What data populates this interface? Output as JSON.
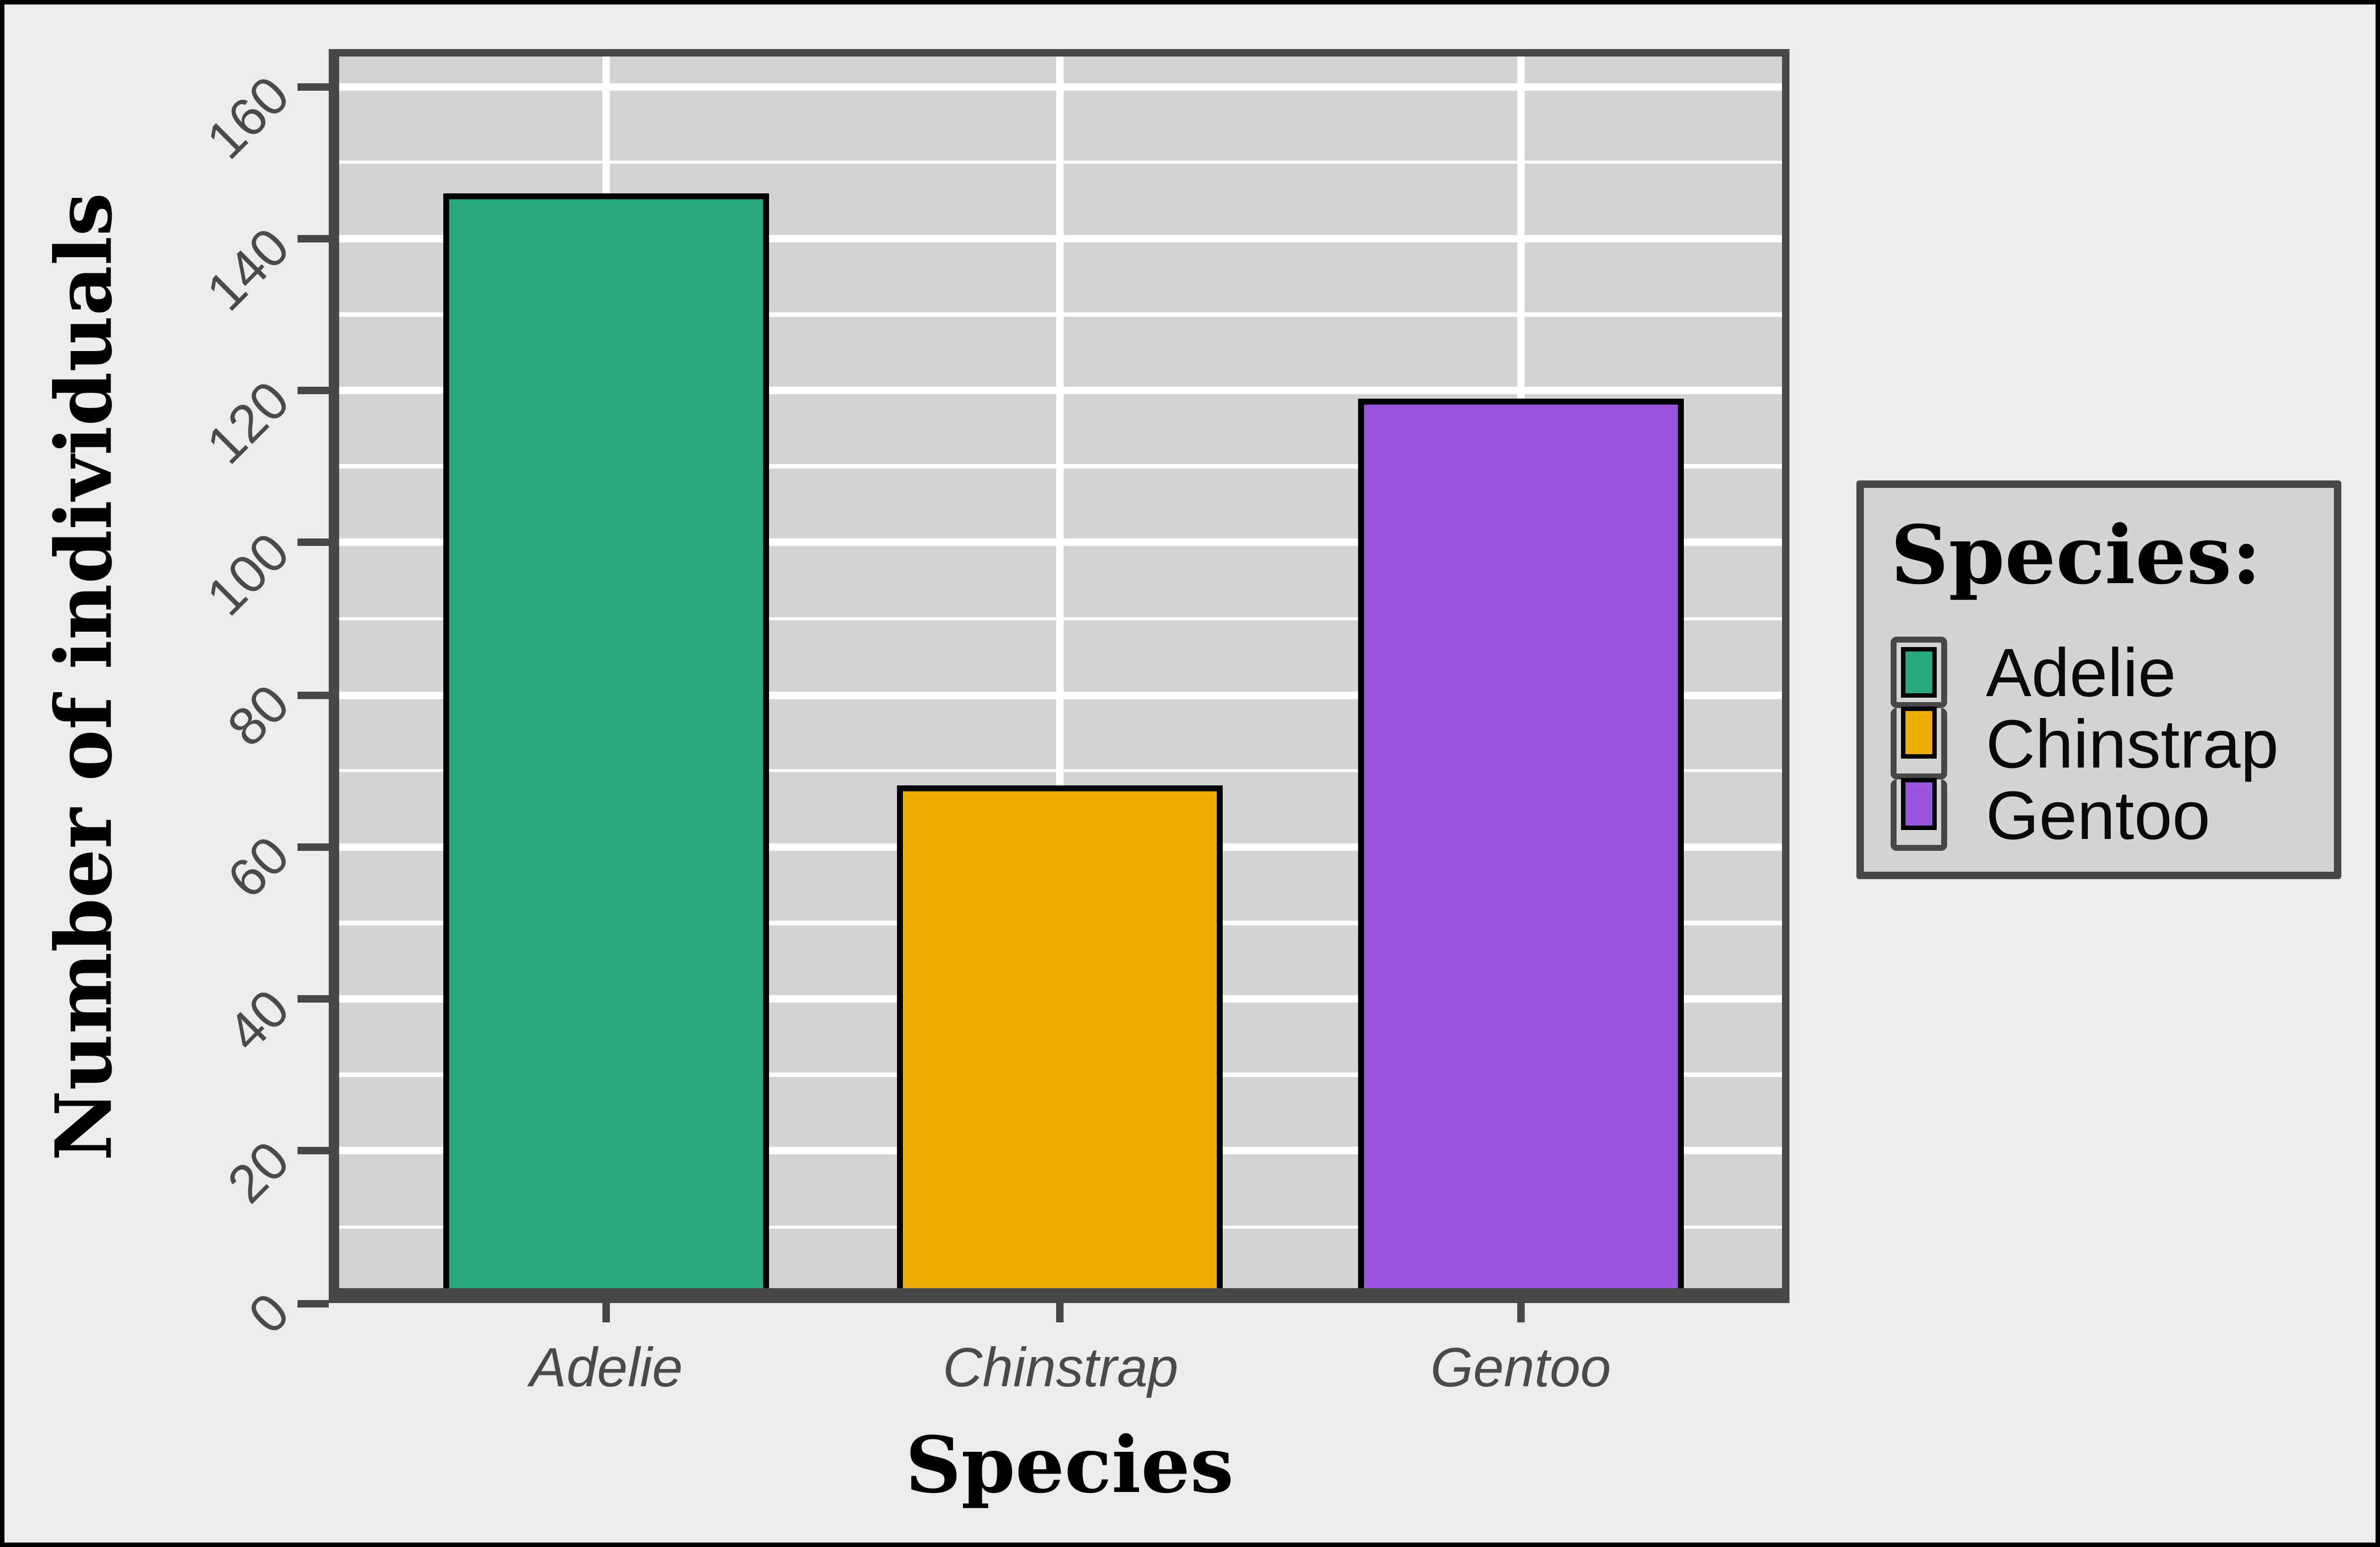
{
  "chart_data": {
    "type": "bar",
    "title": "",
    "categories": [
      "Adelie",
      "Chinstrap",
      "Gentoo"
    ],
    "values": [
      146,
      68,
      119
    ],
    "bar_colors": [
      "#28a87d",
      "#edad02",
      "#9b55e0"
    ],
    "bar_outline_color": "#000000",
    "xlabel": "Species",
    "ylabel": "Number of individuals",
    "ylim": [
      0,
      162.5
    ],
    "yticks": [
      0,
      20,
      40,
      60,
      80,
      100,
      120,
      140,
      160
    ],
    "ytick_labels": [
      "0",
      "20",
      "40",
      "60",
      "80",
      "100",
      "120",
      "140",
      "160"
    ],
    "y_minor_ticks": [
      10,
      30,
      50,
      70,
      90,
      110,
      130,
      150
    ],
    "grid": "horizontal major+minor white, vertical major white at category centers",
    "legend_position": "right",
    "panel_background": "#d3d3d3",
    "outer_background": "#ececec",
    "axis_line_color": "#474747",
    "tick_label_color": "#4a4a4a",
    "ytick_label_angle_deg": 45,
    "xtick_label_style": "italic"
  },
  "axes": {
    "x_title": "Species",
    "y_title": "Number of individuals"
  },
  "legend": {
    "title": "Species:",
    "items": [
      {
        "label": "Adelie",
        "color": "#28a87d"
      },
      {
        "label": "Chinstrap",
        "color": "#edad02"
      },
      {
        "label": "Gentoo",
        "color": "#9b55e0"
      }
    ]
  }
}
